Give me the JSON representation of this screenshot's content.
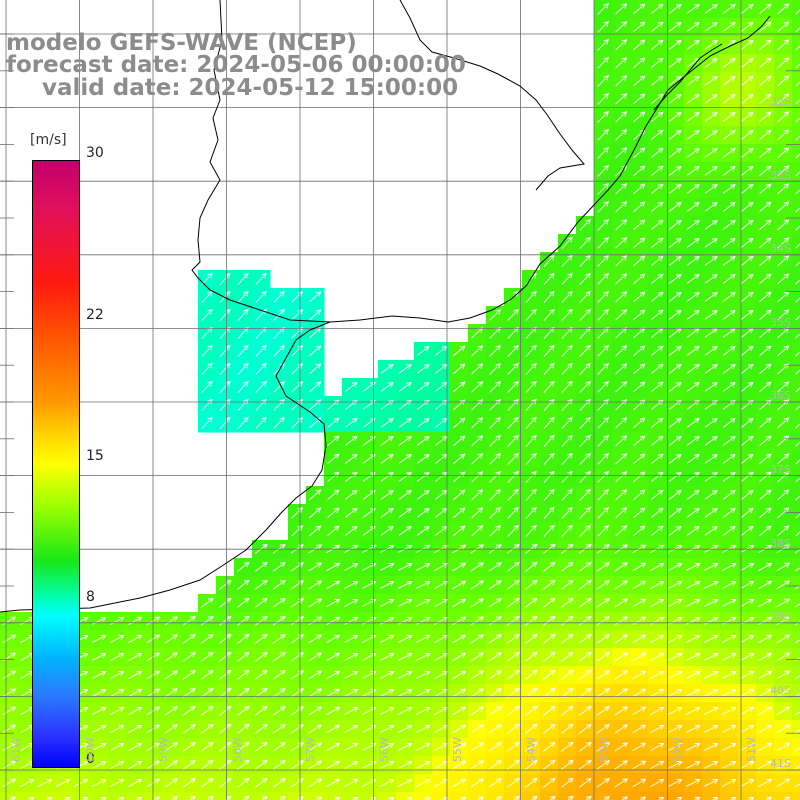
{
  "title": {
    "line1": "modelo GEFS-WAVE (NCEP)",
    "line2": "forecast date: 2024-05-06 00:00:00",
    "line3": "valid date: 2024-05-12 15:00:00"
  },
  "colorbar": {
    "units": "[m/s]",
    "min": 0,
    "max": 30,
    "ticks": [
      {
        "value": 30,
        "label": "30"
      },
      {
        "value": 22,
        "label": "22"
      },
      {
        "value": 15,
        "label": "15"
      },
      {
        "value": 8,
        "label": "8"
      },
      {
        "value": 0,
        "label": "0"
      }
    ]
  },
  "map": {
    "variable": "wind speed and direction",
    "dominant_wind_direction": "from SW toward NE",
    "lat_labels": [
      "32S",
      "33S",
      "34S",
      "35S",
      "36S",
      "37S",
      "38S",
      "39S",
      "40S",
      "41S"
    ],
    "lon_labels": [
      "61W",
      "60W",
      "59W",
      "58W",
      "57W",
      "56W",
      "55W",
      "54W",
      "53W",
      "52W",
      "51W"
    ],
    "colors": {
      "land": "#ffffff",
      "grid": "#6e6e6e",
      "coast": "#000000",
      "arrow": "#ffffff"
    }
  }
}
